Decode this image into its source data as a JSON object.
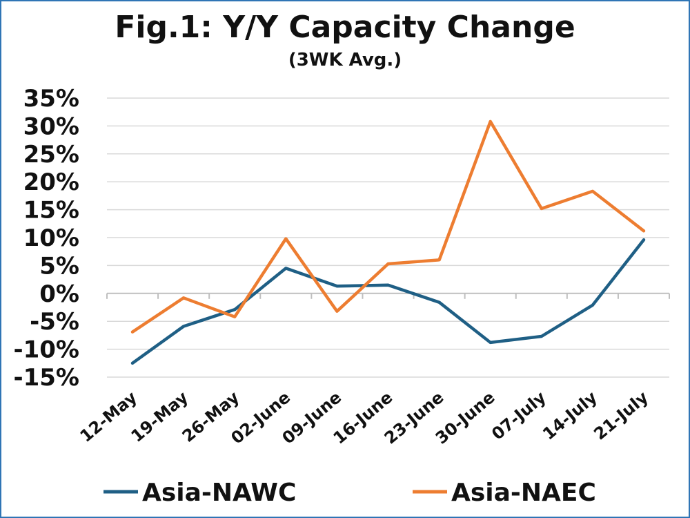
{
  "chart_data": {
    "type": "line",
    "title": "Fig.1: Y/Y Capacity Change",
    "subtitle": "(3WK Avg.)",
    "categories": [
      "12-May",
      "19-May",
      "26-May",
      "02-June",
      "09-June",
      "16-June",
      "23-June",
      "30-June",
      "07-July",
      "14-July",
      "21-July"
    ],
    "series": [
      {
        "name": "Asia-NAWC",
        "color": "#1f5f85",
        "values": [
          -12.5,
          -5.9,
          -2.9,
          4.5,
          1.3,
          1.5,
          -1.6,
          -8.8,
          -7.7,
          -2.1,
          9.6
        ]
      },
      {
        "name": "Asia-NAEC",
        "color": "#ed7d31",
        "values": [
          -6.9,
          -0.8,
          -4.2,
          9.8,
          -3.2,
          5.3,
          6.0,
          30.8,
          15.2,
          18.3,
          11.2
        ]
      }
    ],
    "y_ticks": [
      "35%",
      "30%",
      "25%",
      "20%",
      "15%",
      "10%",
      "5%",
      "0%",
      "-5%",
      "-10%",
      "-15%"
    ],
    "ylim": [
      -15,
      35
    ],
    "y_unit": "%",
    "grid": true,
    "legend_position": "bottom"
  }
}
